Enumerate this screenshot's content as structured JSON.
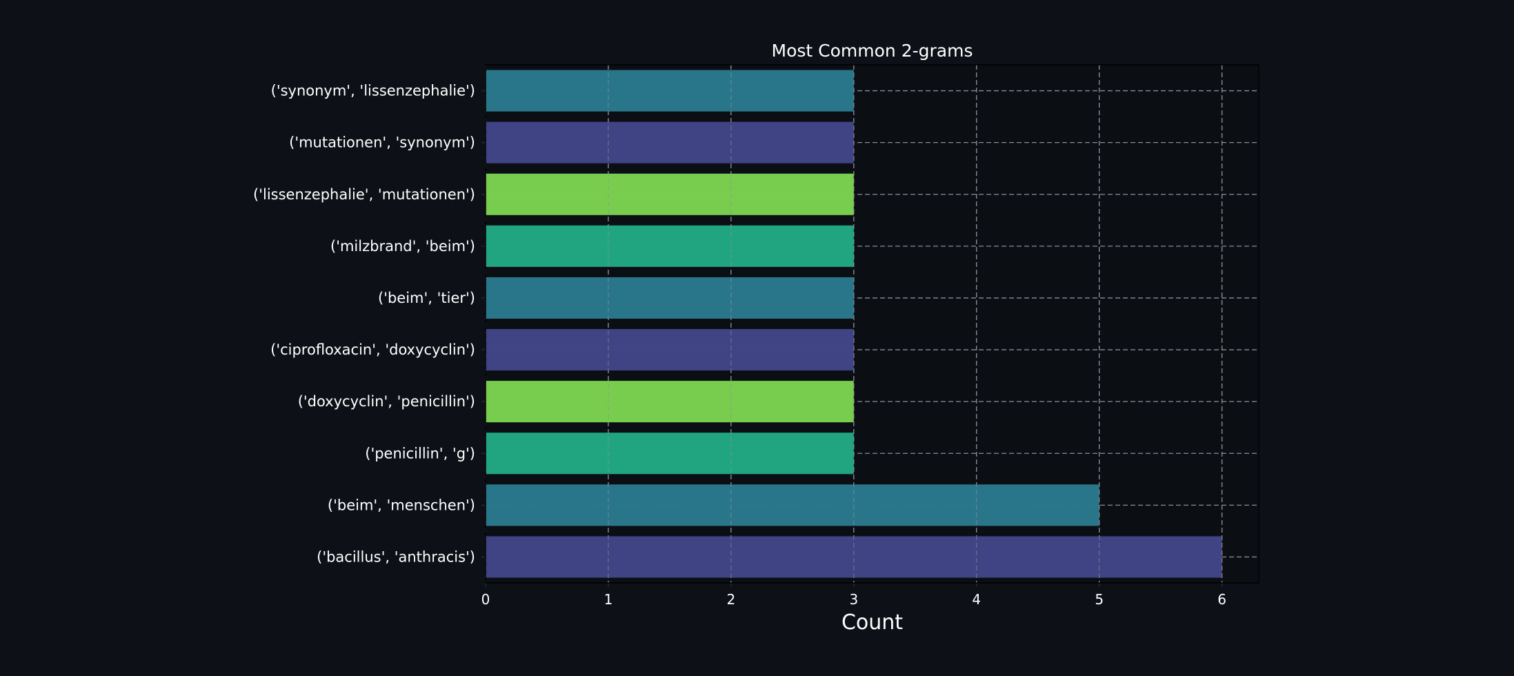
{
  "chart_data": {
    "type": "bar",
    "orientation": "horizontal",
    "title": "Most Common 2-grams",
    "xlabel": "Count",
    "ylabel": "",
    "xlim": [
      0,
      6.3
    ],
    "xticks": [
      0,
      1,
      2,
      3,
      4,
      5,
      6
    ],
    "grid": true,
    "categories": [
      "('synonym', 'lissenzephalie')",
      "('mutationen', 'synonym')",
      "('lissenzephalie', 'mutationen')",
      "('milzbrand', 'beim')",
      "('beim', 'tier')",
      "('ciprofloxacin', 'doxycyclin')",
      "('doxycyclin', 'penicillin')",
      "('penicillin', 'g')",
      "('beim', 'menschen')",
      "('bacillus', 'anthracis')"
    ],
    "values": [
      3,
      3,
      3,
      3,
      3,
      3,
      3,
      3,
      5,
      6
    ],
    "colors": [
      "#2a788e",
      "#414487",
      "#7ad151",
      "#22a884",
      "#2a788e",
      "#414487",
      "#7ad151",
      "#22a884",
      "#2a788e",
      "#414487"
    ]
  },
  "colors": {
    "background": "#0d1117",
    "plot_background": "#0b0f14",
    "grid": "#8a8f96",
    "text": "#ffffff"
  }
}
